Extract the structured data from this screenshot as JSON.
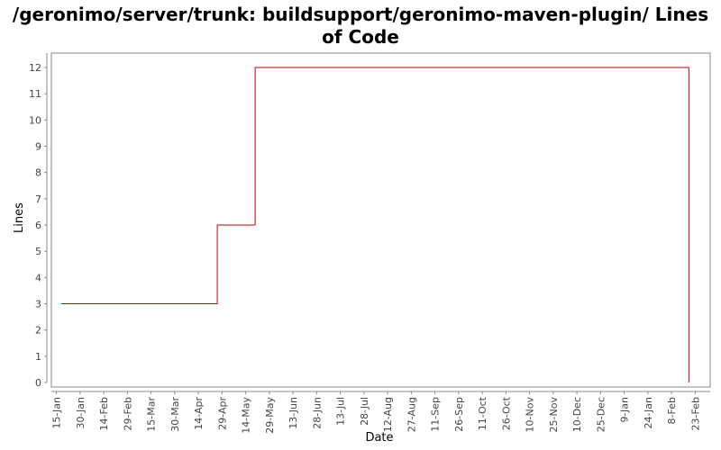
{
  "title": "/geronimo/server/trunk: buildsupport/geronimo-maven-plugin/ Lines of Code",
  "chart_data": {
    "type": "line",
    "step": true,
    "title": "/geronimo/server/trunk: buildsupport/geronimo-maven-plugin/ Lines of Code",
    "xlabel": "Date",
    "ylabel": "Lines",
    "ylim": [
      0,
      12.5
    ],
    "yticks": [
      0,
      1,
      2,
      3,
      4,
      5,
      6,
      7,
      8,
      9,
      10,
      11,
      12
    ],
    "xticks": [
      "15-Jan",
      "30-Jan",
      "14-Feb",
      "29-Feb",
      "15-Mar",
      "30-Mar",
      "14-Apr",
      "29-Apr",
      "14-May",
      "29-May",
      "13-Jun",
      "28-Jun",
      "13-Jul",
      "28-Jul",
      "12-Aug",
      "27-Aug",
      "11-Sep",
      "26-Sep",
      "11-Oct",
      "26-Oct",
      "10-Nov",
      "25-Nov",
      "10-Dec",
      "25-Dec",
      "9-Jan",
      "24-Jan",
      "8-Feb",
      "23-Feb"
    ],
    "grid": false,
    "line_color": "#cc0000",
    "series": [
      {
        "points": [
          {
            "x": "18-Jan",
            "y": 3
          },
          {
            "x": "26-Apr",
            "y": 6
          },
          {
            "x": "20-May",
            "y": 12
          },
          {
            "x": "19-Feb",
            "y": 0
          }
        ]
      }
    ]
  }
}
